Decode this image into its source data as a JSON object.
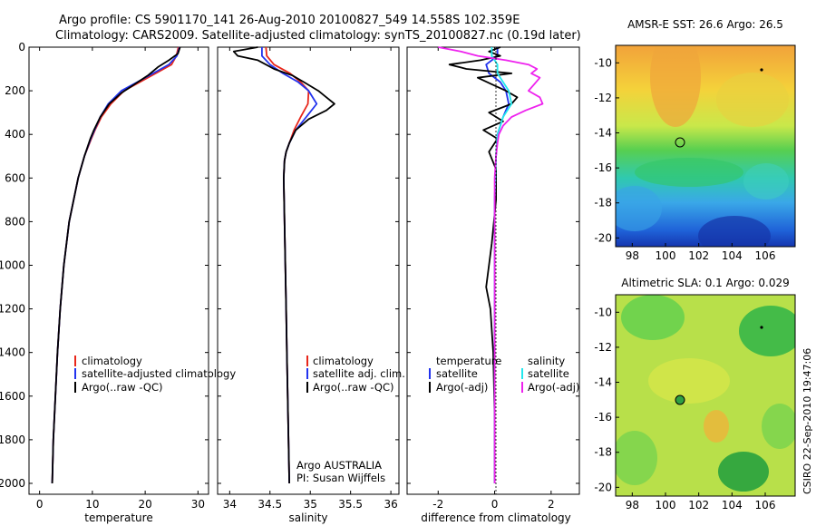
{
  "header": {
    "line1": "Argo profile: CS 5901170_141 26-Aug-2010 20100827_549 14.558S 102.359E",
    "line2": "Climatology: CARS2009. Satellite-adjusted climatology: synTS_20100827.nc (0.19d later)"
  },
  "side_text": "CSIRO 22-Sep-2010 19:47:06",
  "colors": {
    "clim": "#e8261a",
    "sat": "#2233ee",
    "argo": "#000000",
    "sat_s": "#22e8ee",
    "argo_s": "#ee22ee"
  },
  "chart_data": [
    {
      "type": "line",
      "xlabel": "temperature",
      "xlim": [
        -2,
        32
      ],
      "ylim": [
        2050,
        0
      ],
      "xticks": [
        "0",
        "10",
        "20",
        "30"
      ],
      "yticks": [
        "0",
        "200",
        "400",
        "600",
        "800",
        "1000",
        "1200",
        "1400",
        "1600",
        "1800",
        "2000"
      ],
      "legend": [
        "climatology",
        "satellite-adjusted climatology",
        "Argo(..raw -QC)"
      ],
      "series": [
        {
          "name": "climatology",
          "depth": [
            0,
            40,
            80,
            120,
            160,
            200,
            260,
            320,
            380,
            420,
            500,
            600,
            800,
            1000,
            1200,
            1400,
            1600,
            1800,
            2000
          ],
          "values": [
            26.3,
            25.9,
            25.0,
            22.0,
            19.0,
            16.0,
            13.5,
            11.7,
            10.5,
            9.8,
            8.5,
            7.3,
            5.6,
            4.6,
            3.9,
            3.4,
            3.0,
            2.6,
            2.4
          ]
        },
        {
          "name": "satellite-adjusted climatology",
          "depth": [
            0,
            40,
            80,
            120,
            160,
            200,
            260,
            320,
            380,
            420,
            500,
            600,
            800,
            1000,
            1200,
            1400,
            1600,
            1800,
            2000
          ],
          "values": [
            26.5,
            26.0,
            24.5,
            21.5,
            18.5,
            15.5,
            13.0,
            11.5,
            10.4,
            9.7,
            8.5,
            7.3,
            5.6,
            4.6,
            3.9,
            3.4,
            3.0,
            2.6,
            2.4
          ]
        },
        {
          "name": "Argo(..raw -QC)",
          "depth": [
            0,
            30,
            60,
            90,
            130,
            170,
            210,
            260,
            320,
            380,
            420,
            500,
            600,
            800,
            1000,
            1200,
            1400,
            1600,
            1800,
            2000
          ],
          "values": [
            26.6,
            26.2,
            24.5,
            22.5,
            20.5,
            18.0,
            15.5,
            13.2,
            11.5,
            10.3,
            9.6,
            8.5,
            7.3,
            5.6,
            4.6,
            3.9,
            3.4,
            3.0,
            2.6,
            2.4
          ]
        }
      ]
    },
    {
      "type": "line",
      "xlabel": "salinity",
      "xlim": [
        33.85,
        36.1
      ],
      "ylim": [
        2050,
        0
      ],
      "xticks": [
        "34",
        "34.5",
        "35",
        "35.5",
        "36"
      ],
      "legend": [
        "climatology",
        "satellite adj. clim.",
        "Argo(..raw -QC)"
      ],
      "annotation": [
        "Argo AUSTRALIA",
        "PI: Susan Wijffels"
      ],
      "series": [
        {
          "name": "climatology",
          "depth": [
            0,
            40,
            80,
            120,
            160,
            200,
            260,
            320,
            380,
            440,
            480,
            520,
            600,
            800,
            1000,
            1200,
            1400,
            1600,
            1800,
            2000
          ],
          "values": [
            34.45,
            34.46,
            34.55,
            34.75,
            34.88,
            34.98,
            34.97,
            34.88,
            34.8,
            34.74,
            34.7,
            34.68,
            34.67,
            34.68,
            34.69,
            34.7,
            34.71,
            34.72,
            34.73,
            34.74
          ]
        },
        {
          "name": "satellite adj. clim.",
          "depth": [
            0,
            40,
            80,
            120,
            160,
            200,
            260,
            320,
            380,
            440,
            480,
            520,
            600,
            800,
            1000,
            1200,
            1400,
            1600,
            1800,
            2000
          ],
          "values": [
            34.4,
            34.4,
            34.5,
            34.66,
            34.85,
            34.98,
            35.08,
            34.95,
            34.82,
            34.74,
            34.7,
            34.68,
            34.67,
            34.68,
            34.69,
            34.7,
            34.71,
            34.72,
            34.73,
            34.74
          ]
        },
        {
          "name": "Argo(..raw -QC)",
          "depth": [
            0,
            20,
            40,
            60,
            80,
            100,
            130,
            160,
            200,
            230,
            260,
            290,
            330,
            380,
            440,
            480,
            520,
            600,
            800,
            1000,
            1200,
            1400,
            1600,
            1800,
            2000
          ],
          "values": [
            34.35,
            34.05,
            34.1,
            34.35,
            34.45,
            34.55,
            34.78,
            34.92,
            35.1,
            35.2,
            35.3,
            35.2,
            34.98,
            34.82,
            34.74,
            34.7,
            34.68,
            34.67,
            34.68,
            34.69,
            34.7,
            34.71,
            34.72,
            34.73,
            34.74
          ]
        }
      ]
    },
    {
      "type": "line",
      "xlabel": "difference from climatology",
      "xlim": [
        -3.1,
        3.0
      ],
      "ylim": [
        2050,
        0
      ],
      "xticks": [
        "-2",
        "0",
        "2"
      ],
      "legend_left": [
        "temperature",
        "satellite",
        "Argo(-adj)"
      ],
      "legend_right": [
        "salinity",
        "satellite",
        "Argo(-adj)"
      ],
      "series": [
        {
          "name": "satellite",
          "depth": [
            0,
            40,
            80,
            120,
            160,
            200,
            260,
            320,
            400,
            500,
            700,
            1000,
            1500,
            2000
          ],
          "values": [
            0.1,
            0.1,
            -0.3,
            -0.2,
            0.2,
            0.4,
            0.5,
            0.3,
            0.1,
            0.05,
            0.0,
            0.0,
            0.0,
            0.0
          ]
        },
        {
          "name": "Argo(-adj)",
          "depth": [
            0,
            20,
            40,
            60,
            80,
            100,
            120,
            140,
            170,
            200,
            230,
            260,
            300,
            340,
            380,
            420,
            480,
            560,
            700,
            900,
            1000,
            1100,
            1200,
            1400,
            1700,
            2000
          ],
          "values": [
            0.2,
            -0.2,
            0.2,
            -0.5,
            -1.6,
            -1.0,
            0.6,
            -0.6,
            -0.1,
            0.4,
            0.8,
            0.6,
            -0.2,
            0.3,
            -0.4,
            0.1,
            -0.2,
            0.05,
            0.05,
            -0.1,
            -0.2,
            -0.3,
            -0.15,
            -0.05,
            0.0,
            0.0
          ]
        },
        {
          "name": "satellite",
          "depth": [
            0,
            40,
            80,
            120,
            160,
            200,
            260,
            320,
            400,
            500,
            700,
            1000,
            1500,
            2000
          ],
          "values": [
            -0.1,
            -0.1,
            0.1,
            0.1,
            0.3,
            0.5,
            0.6,
            0.3,
            0.1,
            0.05,
            0.0,
            0.0,
            0.0,
            0.0
          ]
        },
        {
          "name": "Argo(-adj)",
          "depth": [
            0,
            20,
            40,
            60,
            80,
            100,
            120,
            140,
            170,
            200,
            230,
            260,
            290,
            320,
            360,
            400,
            440,
            500,
            600,
            800,
            1000,
            1500,
            2000
          ],
          "values": [
            -2.0,
            -1.2,
            -0.6,
            0.4,
            1.2,
            1.5,
            1.3,
            1.6,
            1.4,
            1.2,
            1.6,
            1.7,
            1.1,
            0.6,
            0.3,
            0.15,
            0.1,
            0.05,
            0.0,
            0.0,
            0.0,
            0.0,
            0.0
          ]
        }
      ]
    }
  ],
  "maps": [
    {
      "title": "AMSR-E SST: 26.6  Argo: 26.5",
      "xticks": [
        "98",
        "100",
        "102",
        "104",
        "106"
      ],
      "yticks": [
        "-10",
        "-12",
        "-14",
        "-16",
        "-18",
        "-20"
      ]
    },
    {
      "title": "Altimetric SLA: 0.1  Argo: 0.029",
      "xticks": [
        "98",
        "100",
        "102",
        "104",
        "106"
      ],
      "yticks": [
        "-10",
        "-12",
        "-14",
        "-16",
        "-18",
        "-20"
      ]
    }
  ]
}
